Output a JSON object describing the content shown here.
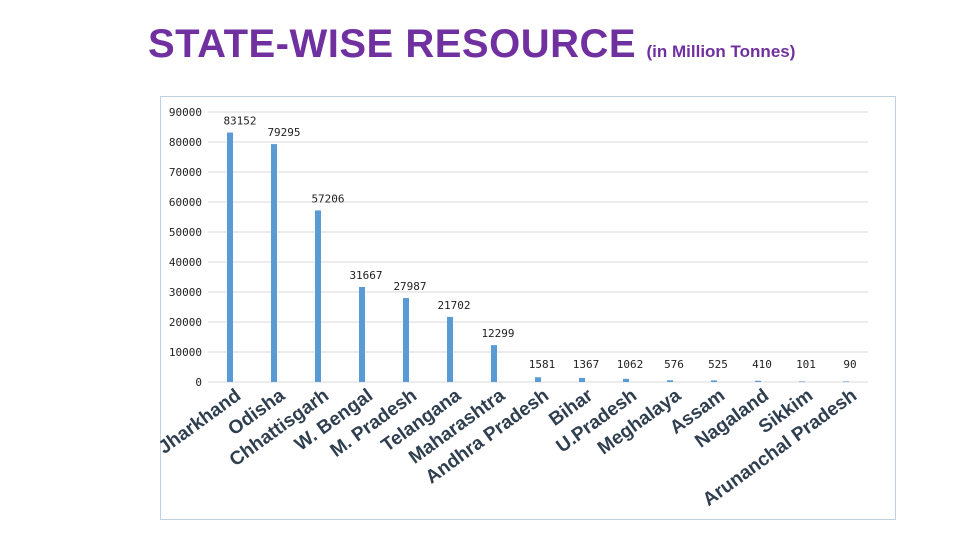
{
  "title": {
    "main": "STATE-WISE RESOURCE",
    "unit": "(in Million Tonnes)"
  },
  "chart_data": {
    "type": "bar",
    "title": "STATE-WISE RESOURCE (in Million Tonnes)",
    "xlabel": "",
    "ylabel": "",
    "ylim": [
      0,
      90000
    ],
    "yticks": [
      "0",
      "10000",
      "20000",
      "30000",
      "40000",
      "50000",
      "60000",
      "70000",
      "80000",
      "90000"
    ],
    "grid": true,
    "bar_color": "#5b9bd5",
    "categories": [
      "Jharkhand",
      "Odisha",
      "Chhattisgarh",
      "W. Bengal",
      "M. Pradesh",
      "Telangana",
      "Maharashtra",
      "Andhra Pradesh",
      "Bihar",
      "U.Pradesh",
      "Meghalaya",
      "Assam",
      "Nagaland",
      "Sikkim",
      "Arunanchal Pradesh"
    ],
    "values": [
      83152,
      79295,
      57206,
      31667,
      27987,
      21702,
      12299,
      1581,
      1367,
      1062,
      576,
      525,
      410,
      101,
      90
    ],
    "labels": [
      "83152",
      "79295",
      "57206",
      "31667",
      "27987",
      "21702",
      "12299",
      "1581",
      "1367",
      "1062",
      "576",
      "525",
      "410",
      "101",
      "90"
    ]
  }
}
